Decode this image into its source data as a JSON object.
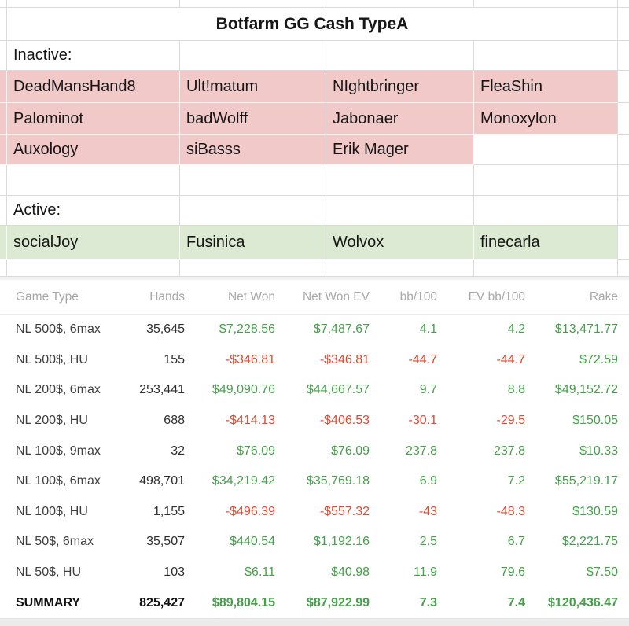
{
  "sheet": {
    "title": "Botfarm GG Cash TypeA",
    "inactive_label": "Inactive:",
    "active_label": "Active:",
    "inactive_players": [
      [
        "DeadMansHand8",
        "Ult!matum",
        "NIghtbringer",
        "FleaShin"
      ],
      [
        "Palominot",
        "badWolff",
        "Jabonaer",
        "Monoxylon"
      ],
      [
        "Auxology",
        "siBasss",
        "Erik Mager",
        ""
      ]
    ],
    "active_players": [
      "socialJoy",
      "Fusinica",
      "Wolvox",
      "finecarla"
    ],
    "colors": {
      "inactive_fill": "#f2c9c9",
      "active_fill": "#dcead4",
      "gridline": "#dadada"
    }
  },
  "stats_table": {
    "columns": [
      "Game Type",
      "Hands",
      "Net Won",
      "Net Won EV",
      "bb/100",
      "EV bb/100",
      "Rake"
    ],
    "column_keys": [
      "game-type",
      "hands",
      "net-won",
      "net-won-ev",
      "bb100",
      "ev-bb100",
      "rake"
    ],
    "rows": [
      [
        "NL 500$, 6max",
        "35,645",
        "$7,228.56",
        "$7,487.67",
        "4.1",
        "4.2",
        "$13,471.77"
      ],
      [
        "NL 500$, HU",
        "155",
        "-$346.81",
        "-$346.81",
        "-44.7",
        "-44.7",
        "$72.59"
      ],
      [
        "NL 200$, 6max",
        "253,441",
        "$49,090.76",
        "$44,667.57",
        "9.7",
        "8.8",
        "$49,152.72"
      ],
      [
        "NL 200$, HU",
        "688",
        "-$414.13",
        "-$406.53",
        "-30.1",
        "-29.5",
        "$150.05"
      ],
      [
        "NL 100$, 9max",
        "32",
        "$76.09",
        "$76.09",
        "237.8",
        "237.8",
        "$10.33"
      ],
      [
        "NL 100$, 6max",
        "498,701",
        "$34,219.42",
        "$35,769.18",
        "6.9",
        "7.2",
        "$55,219.17"
      ],
      [
        "NL 100$, HU",
        "1,155",
        "-$496.39",
        "-$557.32",
        "-43",
        "-48.3",
        "$130.59"
      ],
      [
        "NL 50$, 6max",
        "35,507",
        "$440.54",
        "$1,192.16",
        "2.5",
        "6.7",
        "$2,221.75"
      ],
      [
        "NL 50$, HU",
        "103",
        "$6.11",
        "$40.98",
        "11.9",
        "79.6",
        "$7.50"
      ]
    ],
    "summary_row": [
      "SUMMARY",
      "825,427",
      "$89,804.15",
      "$87,922.99",
      "7.3",
      "7.4",
      "$120,436.47"
    ],
    "colors": {
      "positive": "#45a049",
      "negative": "#e1492f",
      "header_text": "#a8a8a8"
    }
  }
}
